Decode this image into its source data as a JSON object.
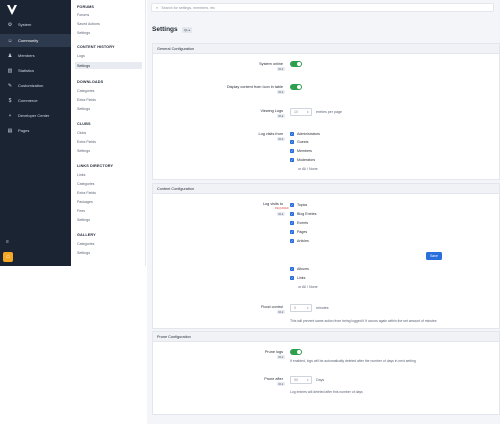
{
  "nav": {
    "items": [
      {
        "label": "System",
        "icon": "gear-icon",
        "glyph": "⚙",
        "active": false
      },
      {
        "label": "Community",
        "icon": "users-icon",
        "glyph": "☺",
        "active": true
      },
      {
        "label": "Members",
        "icon": "member-icon",
        "glyph": "♟",
        "active": false
      },
      {
        "label": "Statistics",
        "icon": "chart-icon",
        "glyph": "▥",
        "active": false
      },
      {
        "label": "Customization",
        "icon": "brush-icon",
        "glyph": "✎",
        "active": false
      },
      {
        "label": "Commerce",
        "icon": "dollar-icon",
        "glyph": "$",
        "active": false
      },
      {
        "label": "Developer Center",
        "icon": "branch-icon",
        "glyph": "⑂",
        "active": false
      },
      {
        "label": "Pages",
        "icon": "page-icon",
        "glyph": "▤",
        "active": false
      }
    ],
    "menu_glyph": "≡",
    "quick_glyph": "⌂"
  },
  "submenu": {
    "sections": [
      {
        "heading": "FORUMS",
        "links": [
          "Forums",
          "Saved Actions",
          "Settings"
        ]
      },
      {
        "heading": "CONTENT HISTORY",
        "links": [
          "Logs",
          "Settings"
        ]
      },
      {
        "heading": "DOWNLOADS",
        "links": [
          "Categories",
          "Extra Fields",
          "Settings"
        ]
      },
      {
        "heading": "CLUBS",
        "links": [
          "Clubs",
          "Extra Fields",
          "Settings"
        ]
      },
      {
        "heading": "LINKS DIRECTORY",
        "links": [
          "Links",
          "Categories",
          "Extra Fields",
          "Packages",
          "Fees",
          "Settings"
        ]
      },
      {
        "heading": "GALLERY",
        "links": [
          "Categories",
          "Settings"
        ]
      }
    ],
    "active_link": "Settings"
  },
  "search": {
    "placeholder": "Search for settings, members, etc",
    "icon": "search-icon"
  },
  "page": {
    "title": "Settings",
    "badge": "QL ▸"
  },
  "general": {
    "heading": "General Configuration",
    "system_online": {
      "label": "System online",
      "badge": "RLk"
    },
    "display_icon": {
      "label": "Display content from Icon in table",
      "badge": "RLk"
    },
    "viewing_logs": {
      "label": "Viewing Logs",
      "badge": "RLk",
      "value": "10",
      "suffix": "entries per page"
    },
    "log_visits_from": {
      "label": "Log visits from",
      "badge": "RLk",
      "options": [
        "Administrators",
        "Guests",
        "Members",
        "Moderators"
      ],
      "or_none": "or  All / None"
    }
  },
  "content": {
    "heading": "Content Configuration",
    "log_visits_to": {
      "label": "Log visits to",
      "required": "REQUIRED",
      "badge": "RLk",
      "options": [
        "Topics",
        "Blog Entries",
        "Events",
        "Pages",
        "Articles"
      ],
      "options_more": [
        "Albums",
        "Links"
      ],
      "or_none": "or  All / None"
    },
    "save_label": "Save",
    "flood_control": {
      "label": "Flood control",
      "badge": "RLk",
      "value": "0",
      "suffix": "minutes",
      "help": "This will prevent same action from being logged if it occurs again within the set amount of minutes"
    }
  },
  "prune": {
    "heading": "Prune Configuration",
    "prune_logs": {
      "label": "Prune logs",
      "badge": "RLk",
      "help": "If enabled, logs will be automatically deleted after the number of days in next setting"
    },
    "prune_after": {
      "label": "Prune after",
      "badge": "RLk",
      "value": "90",
      "suffix": "Days",
      "help": "Log entries will deleted after this number of days"
    }
  },
  "colors": {
    "accent": "#2a6fdb",
    "toggle_on": "#2e9e4f",
    "nav_bg": "#1b2433"
  }
}
